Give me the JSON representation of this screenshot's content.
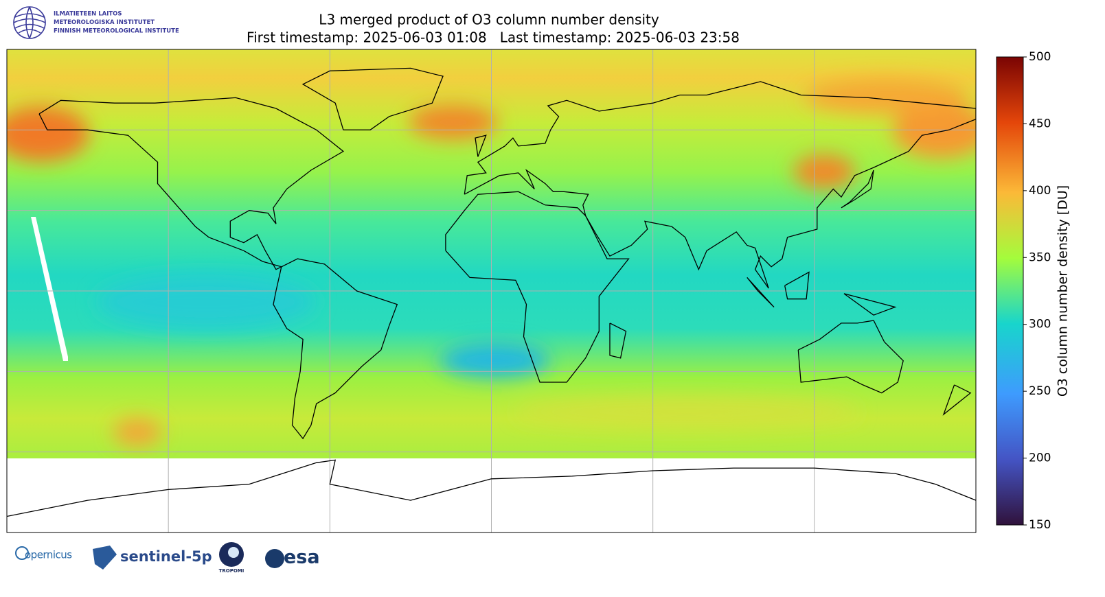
{
  "header": {
    "logo_lines": [
      "ILMATIETEEN LAITOS",
      "METEOROLOGISKA INSTITUTET",
      "FINNISH METEOROLOGICAL INSTITUTE"
    ],
    "title": "L3 merged product of O3 column number density",
    "subtitle": "First timestamp: 2025-06-03 01:08   Last timestamp: 2025-06-03 23:58"
  },
  "colorbar": {
    "label": "O3 column number density [DU]",
    "lim": [
      150,
      500
    ],
    "ticks": [
      150,
      200,
      250,
      300,
      350,
      400,
      450,
      500
    ]
  },
  "footer": {
    "logos": [
      "opernicus",
      "sentinel-5p",
      "TROPOMI",
      "esa"
    ]
  }
}
